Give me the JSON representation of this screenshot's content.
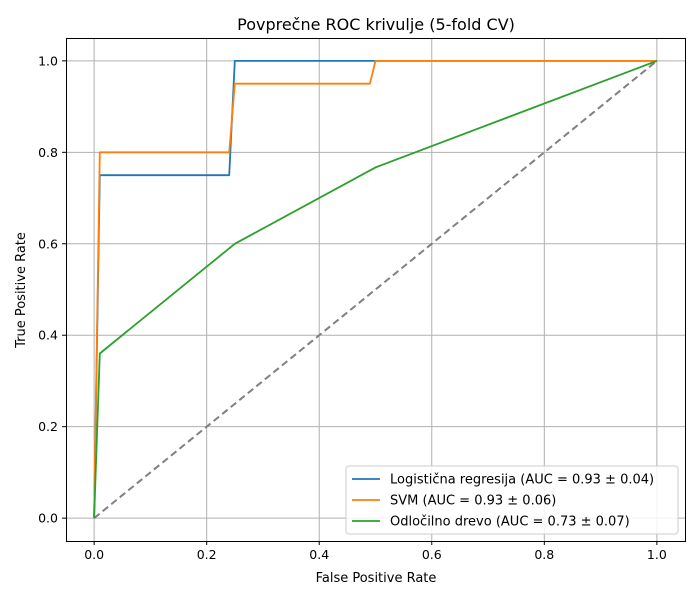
{
  "chart_data": {
    "type": "line",
    "title": "Povprečne ROC krivulje (5-fold CV)",
    "xlabel": "False Positive Rate",
    "ylabel": "True Positive Rate",
    "xlim": [
      -0.05,
      1.05
    ],
    "ylim": [
      -0.05,
      1.05
    ],
    "x_ticks": [
      "0.0",
      "0.2",
      "0.4",
      "0.6",
      "0.8",
      "1.0"
    ],
    "y_ticks": [
      "0.0",
      "0.2",
      "0.4",
      "0.6",
      "0.8",
      "1.0"
    ],
    "grid": true,
    "legend_position": "lower-right",
    "series": [
      {
        "name": "Logistična regresija (AUC = 0.93 ± 0.04)",
        "color": "#1f77b4",
        "x": [
          0.0,
          0.01,
          0.24,
          0.25,
          0.49,
          0.5,
          1.0
        ],
        "y": [
          0.0,
          0.75,
          0.75,
          1.0,
          1.0,
          1.0,
          1.0
        ]
      },
      {
        "name": "SVM (AUC = 0.93 ± 0.06)",
        "color": "#ff7f0e",
        "x": [
          0.0,
          0.01,
          0.24,
          0.25,
          0.49,
          0.5,
          1.0
        ],
        "y": [
          0.0,
          0.8,
          0.8,
          0.95,
          0.95,
          1.0,
          1.0
        ]
      },
      {
        "name": "Odločilno drevo (AUC = 0.73 ± 0.07)",
        "color": "#2ca02c",
        "x": [
          0.0,
          0.01,
          0.25,
          0.5,
          1.0
        ],
        "y": [
          0.0,
          0.36,
          0.6,
          0.767,
          1.0
        ]
      }
    ],
    "reference_line": {
      "x": [
        0.0,
        1.0
      ],
      "y": [
        0.0,
        1.0
      ],
      "color": "#808080",
      "style": "dashed"
    }
  }
}
